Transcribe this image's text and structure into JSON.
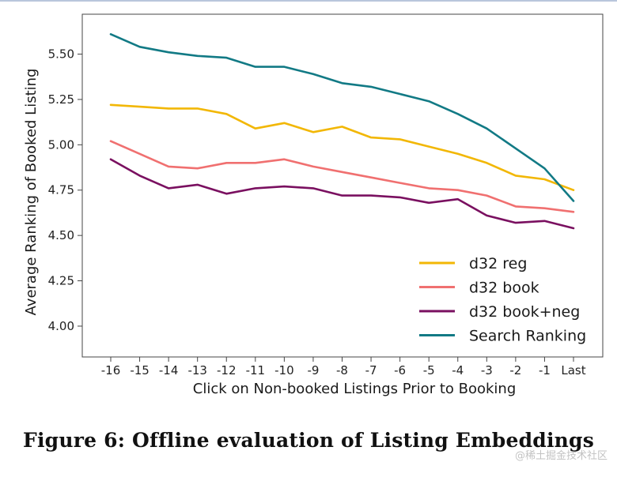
{
  "caption": "Figure 6: Offline evaluation of Listing Embeddings",
  "watermark": "@稀土掘金技术社区",
  "chart_data": {
    "type": "line",
    "title": "",
    "xlabel": "Click on Non-booked Listings Prior to Booking",
    "ylabel": "Average Ranking of Booked Listing",
    "categories": [
      "-16",
      "-15",
      "-14",
      "-13",
      "-12",
      "-11",
      "-10",
      "-9",
      "-8",
      "-7",
      "-6",
      "-5",
      "-4",
      "-3",
      "-2",
      "-1",
      "Last"
    ],
    "ylim": [
      3.83,
      5.72
    ],
    "yticks": [
      4.0,
      4.25,
      4.5,
      4.75,
      5.0,
      5.25,
      5.5
    ],
    "ytick_labels": [
      "4.00",
      "4.25",
      "4.50",
      "4.75",
      "5.00",
      "5.25",
      "5.50"
    ],
    "grid": false,
    "legend_position": "bottom-right",
    "series": [
      {
        "name": "d32 reg",
        "color": "#f2b705",
        "values": [
          5.22,
          5.21,
          5.2,
          5.2,
          5.17,
          5.09,
          5.12,
          5.07,
          5.1,
          5.04,
          5.03,
          4.99,
          4.95,
          4.9,
          4.83,
          4.81,
          4.75
        ]
      },
      {
        "name": "d32 book",
        "color": "#f07070",
        "values": [
          5.02,
          4.95,
          4.88,
          4.87,
          4.9,
          4.9,
          4.92,
          4.88,
          4.85,
          4.82,
          4.79,
          4.76,
          4.75,
          4.72,
          4.66,
          4.65,
          4.63
        ]
      },
      {
        "name": "d32 book+neg",
        "color": "#7a1060",
        "values": [
          4.92,
          4.83,
          4.76,
          4.78,
          4.73,
          4.76,
          4.77,
          4.76,
          4.72,
          4.72,
          4.71,
          4.68,
          4.7,
          4.61,
          4.57,
          4.58,
          4.54
        ]
      },
      {
        "name": "Search Ranking",
        "color": "#127a85",
        "values": [
          5.61,
          5.54,
          5.51,
          5.49,
          5.48,
          5.43,
          5.43,
          5.39,
          5.34,
          5.32,
          5.28,
          5.24,
          5.17,
          5.09,
          4.98,
          4.87,
          4.69
        ]
      }
    ]
  }
}
